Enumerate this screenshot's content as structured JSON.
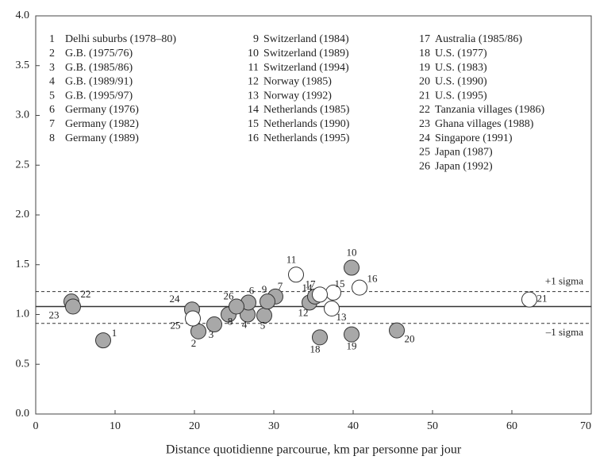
{
  "chart_data": {
    "type": "scatter",
    "xlabel": "Distance quotidienne parcourue, km par personne par jour",
    "xlim": [
      0,
      70
    ],
    "ylim": [
      0,
      4
    ],
    "xticks": [
      0,
      10,
      20,
      30,
      40,
      50,
      60,
      70
    ],
    "yticks": [
      {
        "value": 0,
        "label": "0.0"
      },
      0.5,
      {
        "value": 1,
        "label": "1.0"
      },
      1.5,
      {
        "value": 2,
        "label": "2.0"
      },
      2.5,
      {
        "value": 3,
        "label": "3.0"
      },
      3.5,
      {
        "value": 4,
        "label": "4.0"
      }
    ],
    "x": [
      8.5,
      20.5,
      22.5,
      26.7,
      28.8,
      26.8,
      30.2,
      24.3,
      29.2,
      39.8,
      32.8,
      34.5,
      37.3,
      35.2,
      37.5,
      40.8,
      35.8,
      35.8,
      39.8,
      45.5,
      62.2,
      4.5,
      4.7,
      19.7,
      19.8,
      25.3
    ],
    "values": [
      0.74,
      0.83,
      0.9,
      1.0,
      0.99,
      1.12,
      1.18,
      1.0,
      1.13,
      1.47,
      1.4,
      1.12,
      1.06,
      1.18,
      1.22,
      1.27,
      1.2,
      0.77,
      0.8,
      0.84,
      1.15,
      1.13,
      1.08,
      1.05,
      0.96,
      1.08
    ],
    "point_labels": [
      "1",
      "2",
      "3",
      "4",
      "5",
      "6",
      "7",
      "8",
      "9",
      "10",
      "11",
      "12",
      "13",
      "14",
      "15",
      "16",
      "17",
      "18",
      "19",
      "20",
      "21",
      "22",
      "23",
      "24",
      "25",
      "26"
    ],
    "point_colors": [
      "#a8a8a8",
      "#a8a8a8",
      "#a8a8a8",
      "#a8a8a8",
      "#a8a8a8",
      "#a8a8a8",
      "#a8a8a8",
      "#a8a8a8",
      "#a8a8a8",
      "#a8a8a8",
      "#ffffff",
      "#a8a8a8",
      "#ffffff",
      "#a8a8a8",
      "#ffffff",
      "#ffffff",
      "#ffffff",
      "#a8a8a8",
      "#a8a8a8",
      "#a8a8a8",
      "#ffffff",
      "#a8a8a8",
      "#a8a8a8",
      "#a8a8a8",
      "#ffffff",
      "#a8a8a8"
    ],
    "reference_lines": [
      {
        "value": 1.08,
        "style": "solid"
      },
      {
        "value": 1.23,
        "style": "dashed",
        "label": "+1 sigma"
      },
      {
        "value": 0.91,
        "style": "dashed",
        "label": "–1 sigma"
      }
    ],
    "key": [
      [
        {
          "num": "1",
          "text": "Delhi suburbs (1978–80)"
        },
        {
          "num": "2",
          "text": "G.B. (1975/76)"
        },
        {
          "num": "3",
          "text": "G.B. (1985/86)"
        },
        {
          "num": "4",
          "text": "G.B. (1989/91)"
        },
        {
          "num": "5",
          "text": "G.B. (1995/97)"
        },
        {
          "num": "6",
          "text": "Germany (1976)"
        },
        {
          "num": "7",
          "text": "Germany (1982)"
        },
        {
          "num": "8",
          "text": "Germany (1989)"
        }
      ],
      [
        {
          "num": "9",
          "text": "Switzerland (1984)"
        },
        {
          "num": "10",
          "text": "Switzerland (1989)"
        },
        {
          "num": "11",
          "text": "Switzerland (1994)"
        },
        {
          "num": "12",
          "text": "Norway (1985)"
        },
        {
          "num": "13",
          "text": "Norway (1992)"
        },
        {
          "num": "14",
          "text": "Netherlands (1985)"
        },
        {
          "num": "15",
          "text": "Netherlands (1990)"
        },
        {
          "num": "16",
          "text": "Netherlands (1995)"
        }
      ],
      [
        {
          "num": "17",
          "text": "Australia (1985/86)"
        },
        {
          "num": "18",
          "text": "U.S. (1977)"
        },
        {
          "num": "19",
          "text": "U.S. (1983)"
        },
        {
          "num": "20",
          "text": "U.S. (1990)"
        },
        {
          "num": "21",
          "text": "U.S. (1995)"
        },
        {
          "num": "22",
          "text": "Tanzania villages (1986)"
        },
        {
          "num": "23",
          "text": "Ghana villages (1988)"
        },
        {
          "num": "24",
          "text": "Singapore (1991)"
        },
        {
          "num": "25",
          "text": "Japan (1987)"
        },
        {
          "num": "26",
          "text": "Japan (1992)"
        }
      ]
    ]
  }
}
